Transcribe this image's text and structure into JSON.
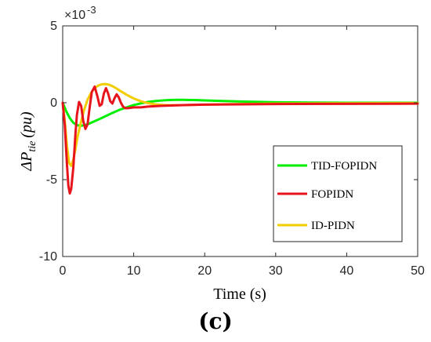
{
  "chart_data": {
    "type": "line",
    "xlabel": "Time (s)",
    "ylabel_main": "ΔP",
    "ylabel_sub": "tie",
    "ylabel_unit": "(pu)",
    "exponent_label": "×10",
    "exponent_power": "-3",
    "panel_label": "(c)",
    "xlim": [
      0,
      50
    ],
    "ylim": [
      -10,
      5
    ],
    "x_ticks": [
      "0",
      "10",
      "20",
      "30",
      "40",
      "50"
    ],
    "y_ticks": [
      "-10",
      "-5",
      "0",
      "5"
    ],
    "legend_position": "inside-right",
    "grid": false,
    "series": [
      {
        "name": "TID-FOPIDN",
        "color": "#00ee00",
        "x": [
          0,
          0.5,
          1,
          1.5,
          2,
          2.5,
          3,
          3.5,
          4,
          5,
          6,
          7,
          8,
          9,
          10,
          11,
          12,
          13,
          14,
          15,
          16,
          17,
          18,
          19,
          20,
          22,
          25,
          30,
          35,
          40,
          45,
          50
        ],
        "y": [
          0,
          -0.55,
          -1.0,
          -1.3,
          -1.45,
          -1.5,
          -1.47,
          -1.4,
          -1.3,
          -1.1,
          -0.88,
          -0.66,
          -0.46,
          -0.3,
          -0.15,
          -0.04,
          0.05,
          0.11,
          0.15,
          0.18,
          0.19,
          0.19,
          0.18,
          0.17,
          0.15,
          0.12,
          0.08,
          0.03,
          0.01,
          0.0,
          0.0,
          0.0
        ]
      },
      {
        "name": "FOPIDN",
        "color": "#e8141b",
        "x": [
          0,
          0.3,
          0.6,
          0.8,
          1.0,
          1.2,
          1.5,
          1.8,
          2.0,
          2.3,
          2.6,
          2.9,
          3.2,
          3.5,
          3.8,
          4.1,
          4.5,
          4.9,
          5.2,
          5.5,
          5.8,
          6.1,
          6.4,
          6.7,
          7.0,
          7.3,
          7.6,
          7.9,
          8.2,
          8.5,
          8.8,
          9.2,
          10,
          11,
          12,
          14,
          17,
          20,
          25,
          30,
          40,
          50
        ],
        "y": [
          0,
          -1.5,
          -4.0,
          -5.4,
          -5.9,
          -5.6,
          -4.2,
          -2.0,
          -0.8,
          0.05,
          -0.2,
          -1.2,
          -1.7,
          -1.4,
          -0.3,
          0.7,
          1.05,
          0.4,
          -0.2,
          -0.1,
          0.6,
          0.95,
          0.6,
          0.1,
          -0.05,
          0.3,
          0.55,
          0.35,
          0.0,
          -0.25,
          -0.35,
          -0.35,
          -0.3,
          -0.3,
          -0.25,
          -0.2,
          -0.15,
          -0.12,
          -0.1,
          -0.08,
          -0.07,
          -0.06
        ]
      },
      {
        "name": "ID-PIDN",
        "color": "#f2cd00",
        "x": [
          0,
          0.3,
          0.6,
          0.9,
          1.2,
          1.5,
          1.8,
          2.1,
          2.5,
          3.0,
          3.5,
          4.0,
          4.5,
          5.0,
          5.5,
          6.0,
          6.5,
          7.0,
          7.5,
          8.0,
          8.5,
          9.0,
          10,
          11,
          12,
          13,
          14,
          15,
          17,
          20,
          25,
          30,
          40,
          50
        ],
        "y": [
          0,
          -1.2,
          -2.8,
          -3.9,
          -4.1,
          -3.7,
          -3.0,
          -2.2,
          -1.4,
          -0.5,
          0.2,
          0.65,
          0.95,
          1.12,
          1.2,
          1.22,
          1.18,
          1.08,
          0.95,
          0.8,
          0.66,
          0.52,
          0.28,
          0.1,
          -0.02,
          -0.1,
          -0.14,
          -0.16,
          -0.15,
          -0.12,
          -0.08,
          -0.05,
          -0.03,
          -0.02
        ]
      }
    ]
  }
}
